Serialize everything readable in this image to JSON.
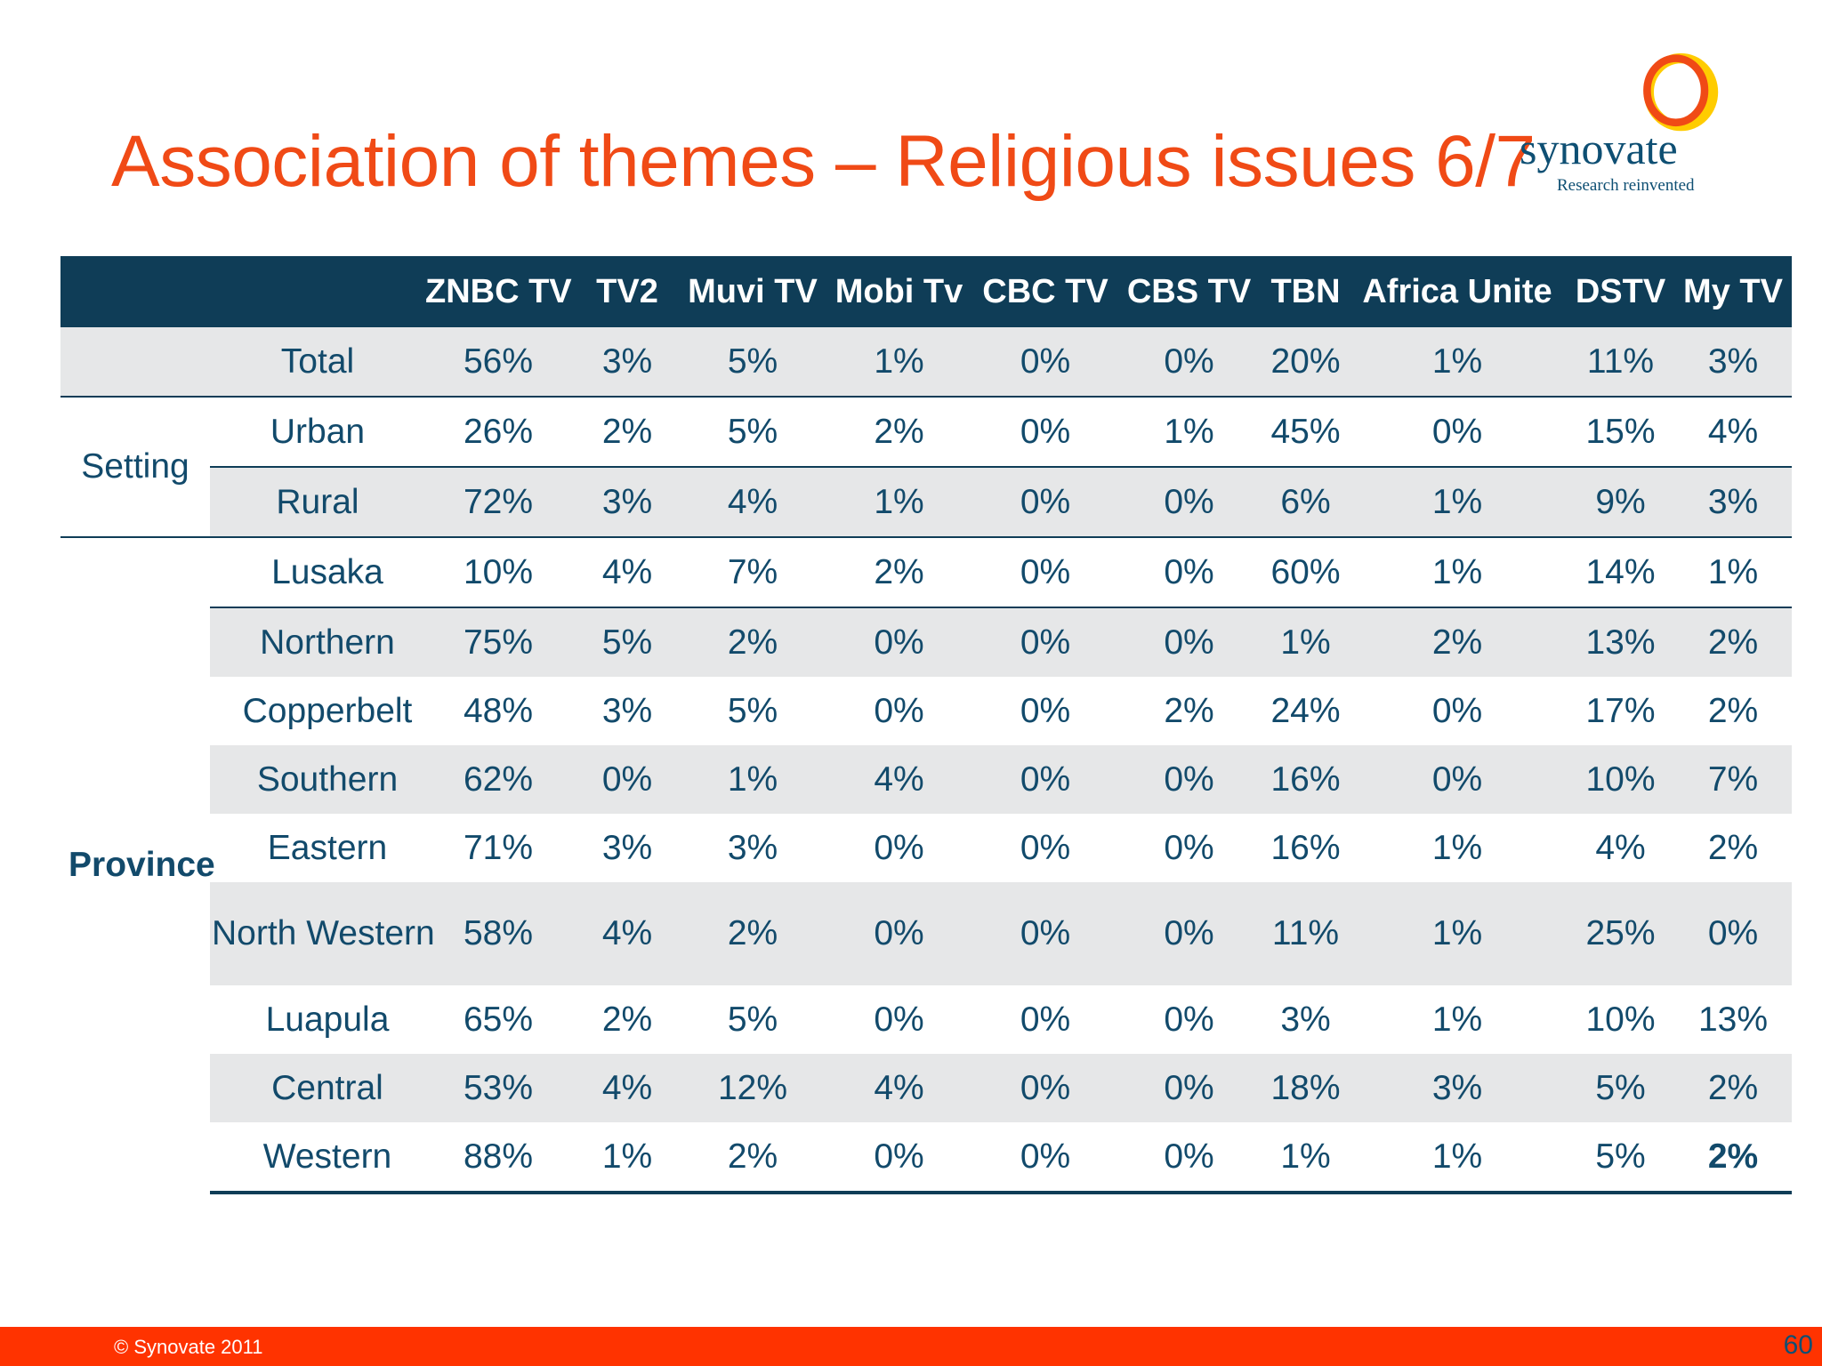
{
  "slide": {
    "title": "Association of themes – Religious issues 6/7",
    "logo_word": "synovate",
    "logo_tagline": "Research reinvented",
    "copyright": "© Synovate 2011",
    "page_number": "60"
  },
  "table": {
    "columns": [
      "ZNBC TV",
      "TV2",
      "Muvi TV",
      "Mobi Tv",
      "CBC TV",
      "CBS TV",
      "TBN",
      "Africa Unite",
      "DSTV",
      "My TV"
    ],
    "groups": {
      "setting": "Setting",
      "province": "Province"
    },
    "rows": [
      {
        "label": "Total",
        "values": [
          "56%",
          "3%",
          "5%",
          "1%",
          "0%",
          "0%",
          "20%",
          "1%",
          "11%",
          "3%"
        ]
      },
      {
        "label": "Urban",
        "values": [
          "26%",
          "2%",
          "5%",
          "2%",
          "0%",
          "1%",
          "45%",
          "0%",
          "15%",
          "4%"
        ]
      },
      {
        "label": "Rural",
        "values": [
          "72%",
          "3%",
          "4%",
          "1%",
          "0%",
          "0%",
          "6%",
          "1%",
          "9%",
          "3%"
        ]
      },
      {
        "label": "Lusaka",
        "values": [
          "10%",
          "4%",
          "7%",
          "2%",
          "0%",
          "0%",
          "60%",
          "1%",
          "14%",
          "1%"
        ]
      },
      {
        "label": "Northern",
        "values": [
          "75%",
          "5%",
          "2%",
          "0%",
          "0%",
          "0%",
          "1%",
          "2%",
          "13%",
          "2%"
        ]
      },
      {
        "label": "Copperbelt",
        "values": [
          "48%",
          "3%",
          "5%",
          "0%",
          "0%",
          "2%",
          "24%",
          "0%",
          "17%",
          "2%"
        ]
      },
      {
        "label": "Southern",
        "values": [
          "62%",
          "0%",
          "1%",
          "4%",
          "0%",
          "0%",
          "16%",
          "0%",
          "10%",
          "7%"
        ]
      },
      {
        "label": "Eastern",
        "values": [
          "71%",
          "3%",
          "3%",
          "0%",
          "0%",
          "0%",
          "16%",
          "1%",
          "4%",
          "2%"
        ]
      },
      {
        "label": "North Western",
        "values": [
          "58%",
          "4%",
          "2%",
          "0%",
          "0%",
          "0%",
          "11%",
          "1%",
          "25%",
          "0%"
        ]
      },
      {
        "label": "Luapula",
        "values": [
          "65%",
          "2%",
          "5%",
          "0%",
          "0%",
          "0%",
          "3%",
          "1%",
          "10%",
          "13%"
        ]
      },
      {
        "label": "Central",
        "values": [
          "53%",
          "4%",
          "12%",
          "4%",
          "0%",
          "0%",
          "18%",
          "3%",
          "5%",
          "2%"
        ]
      },
      {
        "label": "Western",
        "values": [
          "88%",
          "1%",
          "2%",
          "0%",
          "0%",
          "0%",
          "1%",
          "1%",
          "5%",
          "2%"
        ]
      }
    ]
  }
}
